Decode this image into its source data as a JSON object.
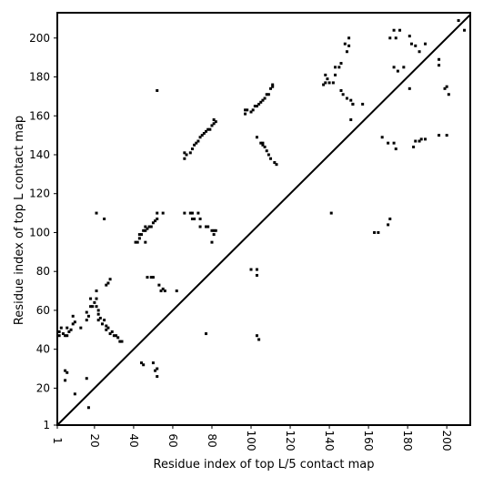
{
  "chart_data": {
    "type": "scatter",
    "title": "",
    "xlabel": "Residue index of top L/5 contact map",
    "ylabel": "Residue index of top L contact map",
    "xlim": [
      1,
      212
    ],
    "ylim": [
      1,
      213
    ],
    "x_ticks": [
      1,
      20,
      40,
      60,
      80,
      100,
      120,
      140,
      160,
      180,
      200
    ],
    "y_ticks": [
      1,
      20,
      40,
      60,
      80,
      100,
      120,
      140,
      160,
      180,
      200
    ],
    "diagonal": {
      "from": [
        1,
        1
      ],
      "to": [
        212,
        212
      ]
    },
    "colors": {
      "points": "#000000",
      "diagonal": "#000000",
      "frame": "#000000"
    },
    "upper_points": [
      [
        21,
        110
      ],
      [
        25,
        107
      ],
      [
        41,
        95
      ],
      [
        42,
        95
      ],
      [
        43,
        97
      ],
      [
        43,
        99
      ],
      [
        44,
        99
      ],
      [
        45,
        101
      ],
      [
        46,
        101
      ],
      [
        46,
        103
      ],
      [
        47,
        102
      ],
      [
        48,
        103
      ],
      [
        49,
        103
      ],
      [
        50,
        105
      ],
      [
        51,
        106
      ],
      [
        52,
        107
      ],
      [
        55,
        110
      ],
      [
        46,
        95
      ],
      [
        52,
        110
      ],
      [
        52,
        173
      ],
      [
        66,
        138
      ],
      [
        66,
        141
      ],
      [
        67,
        140
      ],
      [
        69,
        141
      ],
      [
        70,
        143
      ],
      [
        71,
        145
      ],
      [
        72,
        146
      ],
      [
        73,
        147
      ],
      [
        74,
        149
      ],
      [
        75,
        150
      ],
      [
        76,
        151
      ],
      [
        77,
        152
      ],
      [
        78,
        153
      ],
      [
        79,
        153
      ],
      [
        80,
        155
      ],
      [
        81,
        156
      ],
      [
        81,
        158
      ],
      [
        82,
        157
      ],
      [
        66,
        110
      ],
      [
        69,
        110
      ],
      [
        70,
        110
      ],
      [
        70,
        107
      ],
      [
        71,
        107
      ],
      [
        73,
        110
      ],
      [
        74,
        107
      ],
      [
        74,
        103
      ],
      [
        77,
        103
      ],
      [
        78,
        103
      ],
      [
        80,
        101
      ],
      [
        81,
        101
      ],
      [
        82,
        101
      ],
      [
        81,
        99
      ],
      [
        80,
        95
      ],
      [
        97,
        161
      ],
      [
        97,
        163
      ],
      [
        98,
        163
      ],
      [
        100,
        162
      ],
      [
        101,
        163
      ],
      [
        102,
        165
      ],
      [
        103,
        165
      ],
      [
        104,
        166
      ],
      [
        105,
        167
      ],
      [
        106,
        168
      ],
      [
        107,
        169
      ],
      [
        108,
        171
      ],
      [
        109,
        171
      ],
      [
        110,
        174
      ],
      [
        111,
        175
      ],
      [
        111,
        176
      ],
      [
        103,
        149
      ],
      [
        105,
        146
      ],
      [
        106,
        145
      ],
      [
        106,
        146
      ],
      [
        107,
        144
      ],
      [
        108,
        142
      ],
      [
        109,
        140
      ],
      [
        110,
        138
      ],
      [
        112,
        136
      ],
      [
        113,
        135
      ],
      [
        137,
        176
      ],
      [
        138,
        177
      ],
      [
        138,
        181
      ],
      [
        139,
        179
      ],
      [
        140,
        177
      ],
      [
        142,
        177
      ],
      [
        143,
        181
      ],
      [
        143,
        185
      ],
      [
        145,
        185
      ],
      [
        146,
        187
      ],
      [
        146,
        173
      ],
      [
        147,
        171
      ],
      [
        149,
        169
      ],
      [
        151,
        168
      ],
      [
        152,
        166
      ],
      [
        148,
        197
      ],
      [
        149,
        193
      ],
      [
        150,
        196
      ],
      [
        150,
        200
      ],
      [
        152,
        166
      ],
      [
        157,
        166
      ],
      [
        151,
        158
      ],
      [
        141,
        110
      ],
      [
        171,
        200
      ],
      [
        173,
        204
      ],
      [
        174,
        200
      ],
      [
        176,
        204
      ],
      [
        173,
        185
      ],
      [
        175,
        183
      ],
      [
        178,
        185
      ],
      [
        181,
        201
      ],
      [
        182,
        197
      ],
      [
        184,
        196
      ],
      [
        186,
        193
      ],
      [
        189,
        197
      ],
      [
        196,
        189
      ],
      [
        196,
        186
      ],
      [
        200,
        175
      ],
      [
        201,
        171
      ],
      [
        206,
        209
      ],
      [
        209,
        204
      ],
      [
        199,
        174
      ],
      [
        181,
        174
      ],
      [
        163,
        100
      ],
      [
        165,
        100
      ],
      [
        170,
        104
      ],
      [
        171,
        107
      ],
      [
        167,
        149
      ],
      [
        170,
        146
      ],
      [
        173,
        146
      ],
      [
        174,
        143
      ],
      [
        184,
        147
      ],
      [
        186,
        147
      ],
      [
        187,
        148
      ],
      [
        189,
        148
      ],
      [
        196,
        150
      ],
      [
        200,
        150
      ],
      [
        183,
        144
      ]
    ],
    "lower_points": [
      [
        2,
        47
      ],
      [
        2,
        49
      ],
      [
        3,
        51
      ],
      [
        4,
        48
      ],
      [
        5,
        47
      ],
      [
        6,
        47
      ],
      [
        6,
        51
      ],
      [
        7,
        49
      ],
      [
        8,
        50
      ],
      [
        9,
        53
      ],
      [
        10,
        54
      ],
      [
        9,
        57
      ],
      [
        13,
        51
      ],
      [
        16,
        59
      ],
      [
        17,
        57
      ],
      [
        18,
        62
      ],
      [
        19,
        62
      ],
      [
        20,
        64
      ],
      [
        21,
        62
      ],
      [
        21,
        70
      ],
      [
        22,
        55
      ],
      [
        22,
        58
      ],
      [
        22,
        60
      ],
      [
        23,
        56
      ],
      [
        24,
        53
      ],
      [
        25,
        55
      ],
      [
        26,
        52
      ],
      [
        26,
        50
      ],
      [
        27,
        51
      ],
      [
        28,
        48
      ],
      [
        29,
        49
      ],
      [
        30,
        47
      ],
      [
        31,
        47
      ],
      [
        32,
        46
      ],
      [
        33,
        44
      ],
      [
        34,
        44
      ],
      [
        18,
        66
      ],
      [
        21,
        66
      ],
      [
        26,
        73
      ],
      [
        27,
        74
      ],
      [
        28,
        76
      ],
      [
        16,
        55
      ],
      [
        5,
        29
      ],
      [
        6,
        28
      ],
      [
        5,
        24
      ],
      [
        10,
        17
      ],
      [
        16,
        25
      ],
      [
        17,
        10
      ],
      [
        44,
        33
      ],
      [
        45,
        32
      ],
      [
        47,
        77
      ],
      [
        49,
        77
      ],
      [
        50,
        77
      ],
      [
        50,
        33
      ],
      [
        51,
        29
      ],
      [
        52,
        26
      ],
      [
        52,
        30
      ],
      [
        53,
        73
      ],
      [
        54,
        70
      ],
      [
        55,
        71
      ],
      [
        56,
        70
      ],
      [
        62,
        70
      ],
      [
        77,
        48
      ],
      [
        100,
        81
      ],
      [
        103,
        81
      ],
      [
        103,
        78
      ],
      [
        103,
        47
      ],
      [
        104,
        45
      ]
    ]
  }
}
